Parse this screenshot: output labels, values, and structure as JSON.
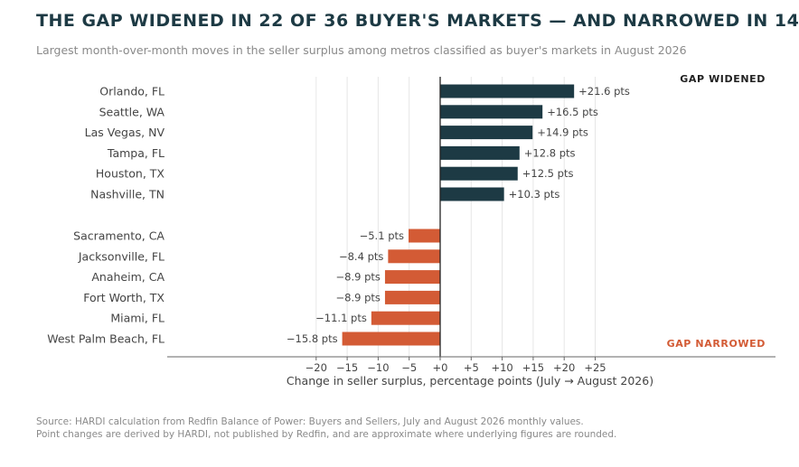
{
  "title": "THE GAP WIDENED IN 22 OF 36 BUYER'S MARKETS — AND NARROWED IN 14",
  "subtitle": "Largest month-over-month moves in the seller surplus among metros classified as buyer's markets in August 2026",
  "source_line_1": "Source: HARDI calculation from Redfin Balance of Power: Buyers and Sellers, July and August 2026 monthly values.",
  "source_line_2": "Point changes are derived by HARDI, not published by Redfin, and are approximate where underlying figures are rounded.",
  "colors": {
    "widened": "#1d3a44",
    "narrowed": "#d35b35",
    "text": "#444444"
  },
  "chart_data": {
    "type": "bar",
    "orientation": "horizontal",
    "xlabel": "Change in seller surplus, percentage points (July → August 2026)",
    "xlim": [
      -20,
      25
    ],
    "xticks": [
      -20,
      -15,
      -10,
      -5,
      0,
      5,
      10,
      15,
      20,
      25
    ],
    "xtick_labels": [
      "−20",
      "−15",
      "−10",
      "−5",
      "+0",
      "+5",
      "+10",
      "+15",
      "+20",
      "+25"
    ],
    "grid": "vertical",
    "annotations": {
      "widened": "GAP WIDENED",
      "narrowed": "GAP NARROWED"
    },
    "groups": [
      {
        "name": "widened",
        "categories": [
          "Orlando, FL",
          "Seattle, WA",
          "Las Vegas, NV",
          "Tampa, FL",
          "Houston, TX",
          "Nashville, TN"
        ],
        "values": [
          21.6,
          16.5,
          14.9,
          12.8,
          12.5,
          10.3
        ],
        "labels": [
          "+21.6 pts",
          "+16.5 pts",
          "+14.9 pts",
          "+12.8 pts",
          "+12.5 pts",
          "+10.3 pts"
        ]
      },
      {
        "name": "narrowed",
        "categories": [
          "Sacramento, CA",
          "Jacksonville, FL",
          "Anaheim, CA",
          "Fort Worth, TX",
          "Miami, FL",
          "West Palm Beach, FL"
        ],
        "values": [
          -5.1,
          -8.4,
          -8.9,
          -8.9,
          -11.1,
          -15.8
        ],
        "labels": [
          "−5.1 pts",
          "−8.4 pts",
          "−8.9 pts",
          "−8.9 pts",
          "−11.1 pts",
          "−15.8 pts"
        ]
      }
    ]
  }
}
